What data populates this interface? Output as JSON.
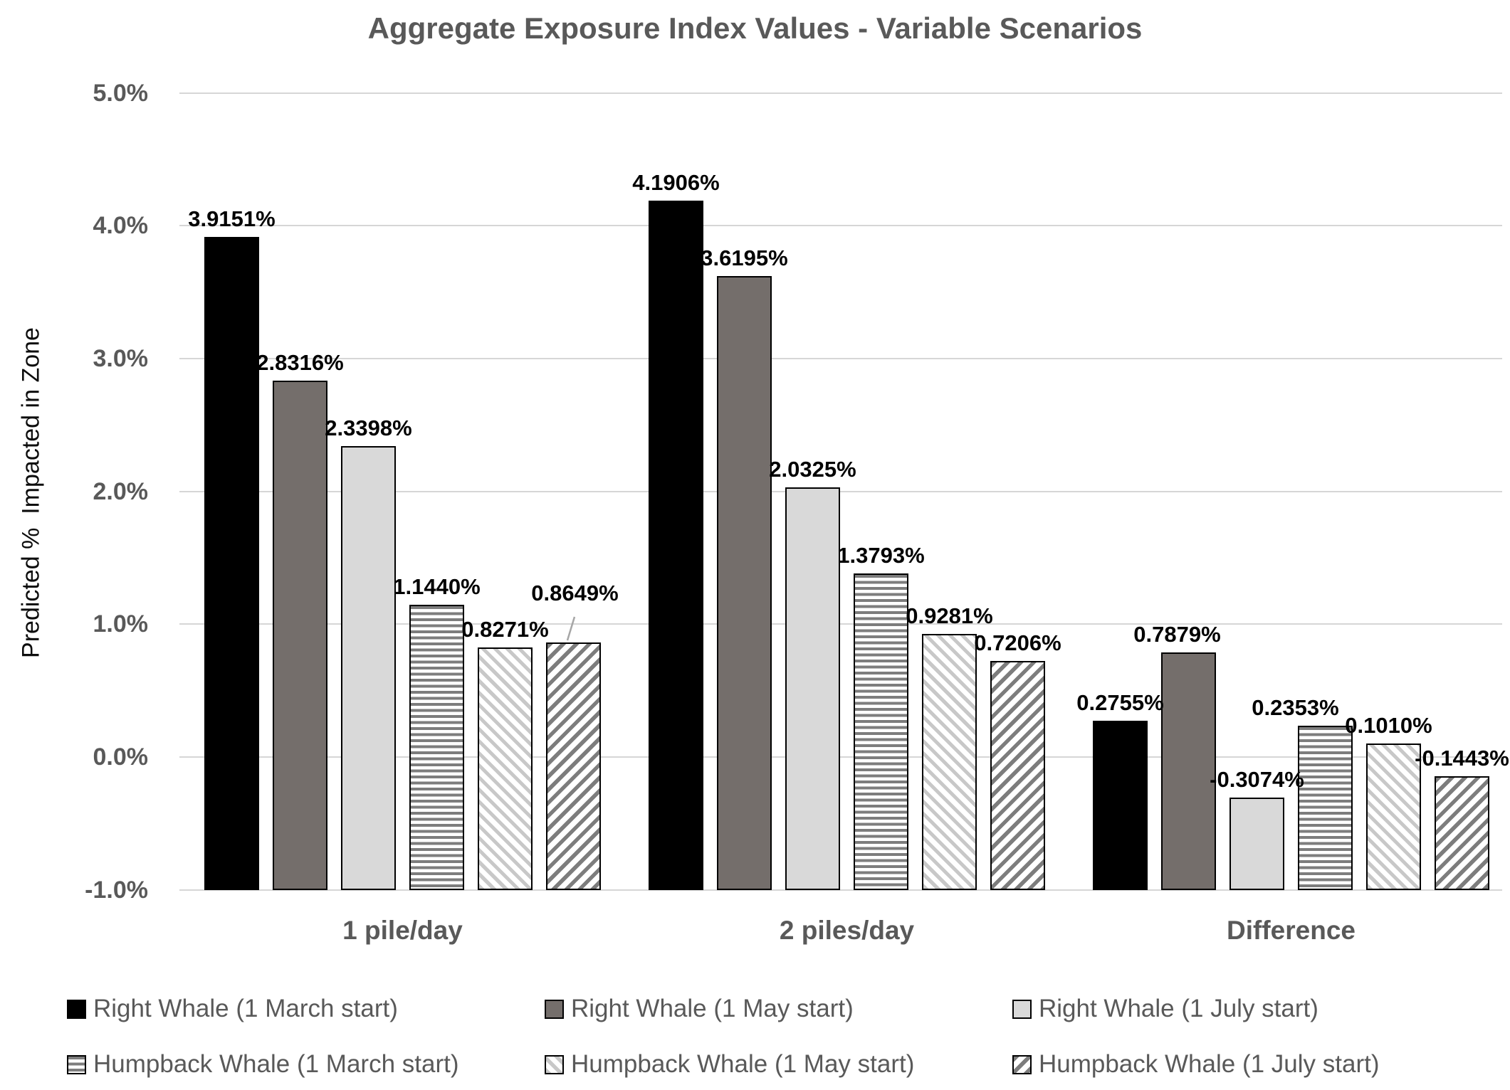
{
  "title": "Aggregate Exposure Index Values - Variable Scenarios",
  "y_axis": {
    "label": "Predicted %  Impacted in Zone",
    "ticks": [
      {
        "label": "5.0%",
        "value": 5
      },
      {
        "label": "4.0%",
        "value": 4
      },
      {
        "label": "3.0%",
        "value": 3
      },
      {
        "label": "2.0%",
        "value": 2
      },
      {
        "label": "1.0%",
        "value": 1
      },
      {
        "label": "0.0%",
        "value": 0
      },
      {
        "label": "-1.0%",
        "value": -1
      }
    ]
  },
  "x_axis": {
    "categories": [
      "1 pile/day",
      "2 piles/day",
      "Difference"
    ]
  },
  "chart_data": {
    "type": "bar",
    "title": "Aggregate Exposure Index Values - Variable Scenarios",
    "xlabel": "",
    "ylabel": "Predicted %  Impacted in Zone",
    "ylim": [
      -1,
      5
    ],
    "bar_baseline": -1,
    "grid": true,
    "legend_position": "bottom",
    "value_labels": true,
    "categories": [
      "1 pile/day",
      "2 piles/day",
      "Difference"
    ],
    "series": [
      {
        "name": "Right Whale (1 March start)",
        "fill": "f-black",
        "values": [
          3.9151,
          4.1906,
          0.2755
        ]
      },
      {
        "name": "Right Whale (1 May start)",
        "fill": "f-gray",
        "values": [
          2.8316,
          3.6195,
          0.7879
        ]
      },
      {
        "name": "Right Whale (1 July start)",
        "fill": "f-lightgray",
        "values": [
          2.3398,
          2.0325,
          -0.3074
        ]
      },
      {
        "name": "Humpback Whale (1 March start)",
        "fill": "f-hstripe",
        "values": [
          1.144,
          1.3793,
          0.2353
        ]
      },
      {
        "name": "Humpback Whale (1 May start)",
        "fill": "f-bslash",
        "values": [
          0.8271,
          0.9281,
          0.101
        ]
      },
      {
        "name": "Humpback Whale (1 July start)",
        "fill": "f-fslash",
        "values": [
          0.8649,
          0.7206,
          -0.1443
        ]
      }
    ]
  },
  "colors": {
    "title_text": "#595959",
    "tick_text": "#595959",
    "category_text": "#595959",
    "legend_text": "#595959",
    "value_label_text": "#000000",
    "gridline": "#d6d6d6",
    "bar_border": "#000000",
    "solid_black": "#000000",
    "solid_gray": "#746e6b",
    "solid_light_gray": "#d9d9d9",
    "stripe_dark": "#7d7d7d",
    "stripe_light": "#c8c8c8",
    "callout_line": "#a6a6a6"
  }
}
